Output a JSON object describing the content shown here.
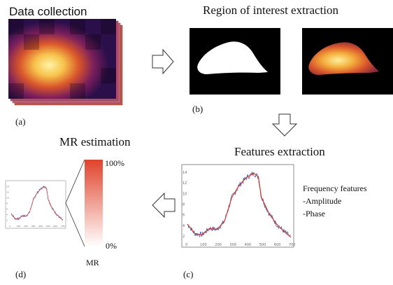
{
  "titles": {
    "data_collection": "Data collection",
    "roi_extraction": "Region of interest extraction",
    "features_extraction": "Features extraction",
    "mr_estimation": "MR estimation"
  },
  "panel_labels": {
    "a": "(a)",
    "b": "(b)",
    "c": "(c)",
    "d": "(d)"
  },
  "features_text": {
    "heading": "Frequency features",
    "amplitude": "-Amplitude",
    "phase": "-Phase"
  },
  "mr_bar": {
    "top_label": "100%",
    "bottom_label": "0%",
    "axis_label": "MR",
    "color_top": "#e0432b",
    "color_bottom": "#ffffff"
  },
  "main_plot": {
    "x_ticks": [
      "0",
      "100",
      "200",
      "300",
      "400",
      "500",
      "600",
      "700"
    ],
    "y_ticks": [
      "2",
      "4",
      "6",
      "8",
      "10",
      "12",
      "14"
    ],
    "signal_color": "#3a5fa8",
    "fit_color": "#d9342b",
    "x": [
      0,
      50,
      100,
      150,
      200,
      250,
      300,
      350,
      400,
      450,
      480,
      500,
      550,
      600,
      650,
      700
    ],
    "y": [
      4.3,
      2.5,
      2.3,
      3.5,
      3.3,
      4.8,
      9.3,
      11.6,
      13.1,
      13.9,
      13.2,
      9.4,
      6.4,
      4.4,
      3.0,
      1.8
    ]
  },
  "small_plot": {
    "x_ticks": [
      "0",
      "100",
      "200",
      "300",
      "400",
      "500",
      "600",
      "700"
    ],
    "y_ticks": [
      "2",
      "4",
      "6",
      "8",
      "10",
      "12",
      "14"
    ]
  },
  "icons": {
    "arrow_right": "hollow-arrow-right",
    "arrow_down": "hollow-arrow-down",
    "arrow_left": "hollow-arrow-left"
  }
}
